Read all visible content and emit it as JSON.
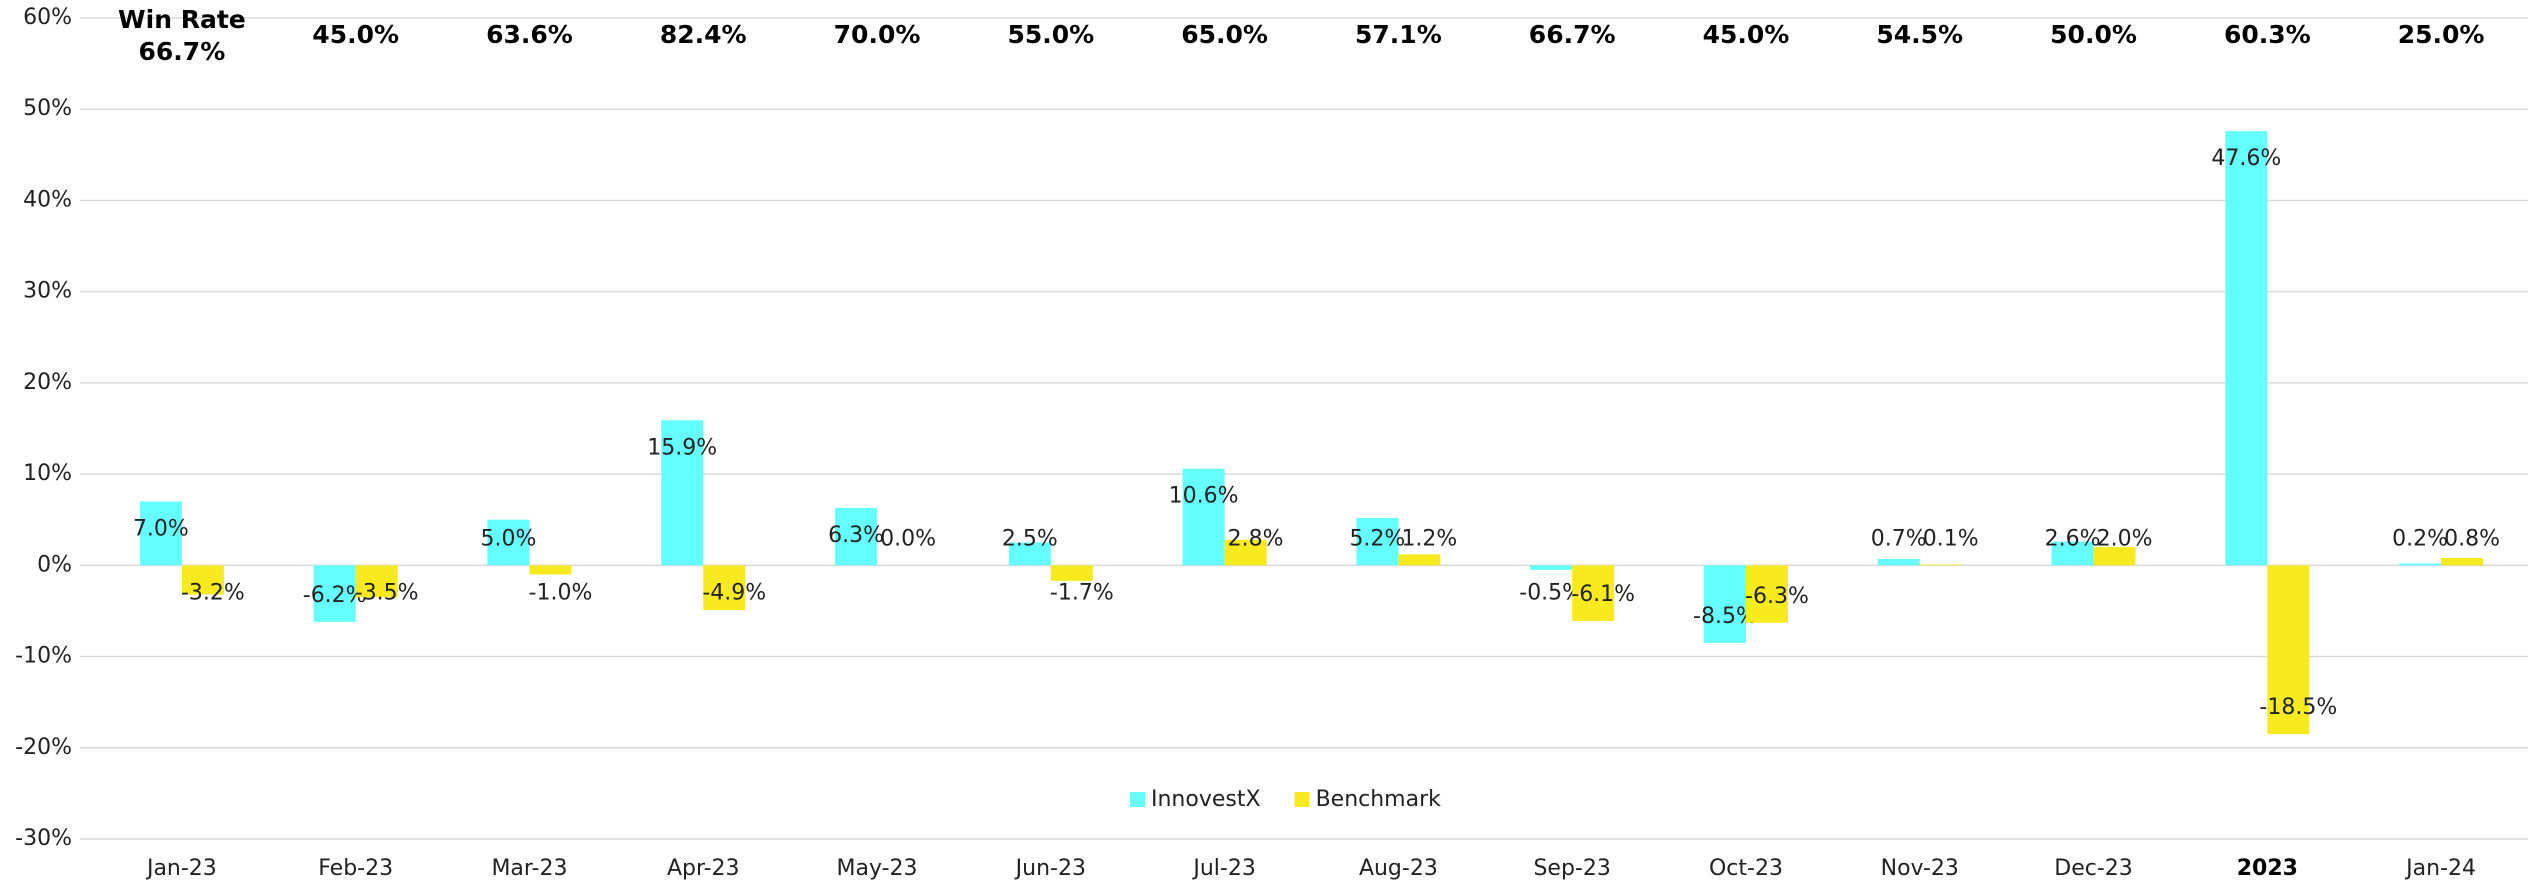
{
  "chart_data": {
    "type": "bar",
    "categories": [
      "Jan-23",
      "Feb-23",
      "Mar-23",
      "Apr-23",
      "May-23",
      "Jun-23",
      "Jul-23",
      "Aug-23",
      "Sep-23",
      "Oct-23",
      "Nov-23",
      "Dec-23",
      "2023",
      "Jan-24"
    ],
    "bold_categories": [
      12
    ],
    "series": [
      {
        "name": "InnovestX",
        "color": "#66ffff",
        "values": [
          7.0,
          -6.2,
          5.0,
          15.9,
          6.3,
          2.5,
          10.6,
          5.2,
          -0.5,
          -8.5,
          0.7,
          2.6,
          47.6,
          0.2
        ],
        "value_labels": [
          "7.0%",
          "-6.2%",
          "5.0%",
          "15.9%",
          "6.3%",
          "2.5%",
          "10.6%",
          "5.2%",
          "-0.5%",
          "-8.5%",
          "0.7%",
          "2.6%",
          "47.6%",
          "0.2%"
        ]
      },
      {
        "name": "Benchmark",
        "color": "#f7ea1f",
        "values": [
          -3.2,
          -3.5,
          -1.0,
          -4.9,
          0.0,
          -1.7,
          2.8,
          1.2,
          -6.1,
          -6.3,
          0.1,
          2.0,
          -18.5,
          0.8
        ],
        "value_labels": [
          "-3.2%",
          "-3.5%",
          "-1.0%",
          "-4.9%",
          "0.0%",
          "-1.7%",
          "2.8%",
          "1.2%",
          "-6.1%",
          "-6.3%",
          "0.1%",
          "2.0%",
          "-18.5%",
          "0.8%"
        ]
      }
    ],
    "win_rate_title": "Win Rate",
    "win_rates": [
      {
        "value": 66.7,
        "label": "66.7%"
      },
      {
        "value": 45.0,
        "label": "45.0%"
      },
      {
        "value": 63.6,
        "label": "63.6%"
      },
      {
        "value": 82.4,
        "label": "82.4%"
      },
      {
        "value": 70.0,
        "label": "70.0%"
      },
      {
        "value": 55.0,
        "label": "55.0%"
      },
      {
        "value": 65.0,
        "label": "65.0%"
      },
      {
        "value": 57.1,
        "label": "57.1%"
      },
      {
        "value": 66.7,
        "label": "66.7%"
      },
      {
        "value": 45.0,
        "label": "45.0%"
      },
      {
        "value": 54.5,
        "label": "54.5%"
      },
      {
        "value": 50.0,
        "label": "50.0%"
      },
      {
        "value": 60.3,
        "label": "60.3%"
      },
      {
        "value": 25.0,
        "label": "25.0%"
      }
    ],
    "ylim": [
      -30,
      60
    ],
    "yticks": [
      {
        "value": -30,
        "label": "-30%"
      },
      {
        "value": -20,
        "label": "-20%"
      },
      {
        "value": -10,
        "label": "-10%"
      },
      {
        "value": 0,
        "label": "0%"
      },
      {
        "value": 10,
        "label": "10%"
      },
      {
        "value": 20,
        "label": "20%"
      },
      {
        "value": 30,
        "label": "30%"
      },
      {
        "value": 40,
        "label": "40%"
      },
      {
        "value": 50,
        "label": "50%"
      },
      {
        "value": 60,
        "label": "60%"
      }
    ],
    "grid": true,
    "legend": "bottom"
  }
}
